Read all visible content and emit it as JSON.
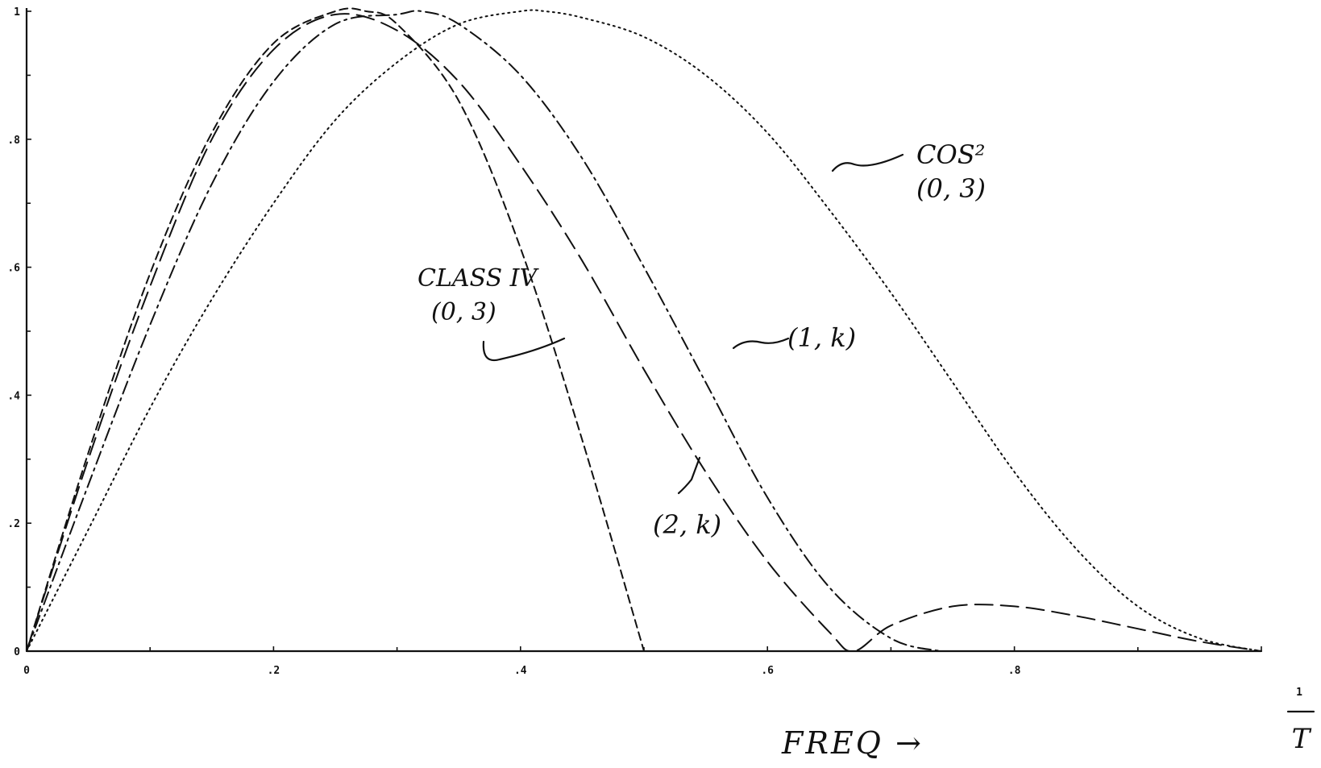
{
  "chart_data": {
    "type": "line",
    "xlabel": "FREQ →",
    "xlim": [
      0,
      1
    ],
    "ylim": [
      0,
      1
    ],
    "x_ticks": [
      {
        "value": 0,
        "label": "0"
      },
      {
        "value": 0.2,
        "label": ".2"
      },
      {
        "value": 0.4,
        "label": ".4"
      },
      {
        "value": 0.6,
        "label": ".6"
      },
      {
        "value": 0.8,
        "label": ".8"
      }
    ],
    "x_end_label": {
      "value": 1,
      "numerator": "1",
      "denominator": "T"
    },
    "y_ticks": [
      {
        "value": 0,
        "label": "0"
      },
      {
        "value": 0.2,
        "label": ".2"
      },
      {
        "value": 0.4,
        "label": ".4"
      },
      {
        "value": 0.6,
        "label": ".6"
      },
      {
        "value": 0.8,
        "label": ".8"
      },
      {
        "value": 1,
        "label": "1"
      }
    ],
    "grid": false,
    "series": [
      {
        "name": "CLASS IV (0,3)",
        "label_lines": [
          "CLASS IV",
          "(0, 3)"
        ],
        "style": "short-dash",
        "x": [
          0,
          0.05,
          0.1,
          0.15,
          0.2,
          0.25,
          0.275,
          0.3,
          0.35,
          0.4,
          0.45,
          0.5
        ],
        "y": [
          0,
          0.31,
          0.59,
          0.81,
          0.95,
          1.0,
          1.0,
          0.98,
          0.86,
          0.63,
          0.33,
          0
        ]
      },
      {
        "name": "(2,k)",
        "label_lines": [
          "(2, k)"
        ],
        "style": "long-dash",
        "x": [
          0,
          0.05,
          0.1,
          0.15,
          0.2,
          0.25,
          0.3,
          0.35,
          0.4,
          0.45,
          0.5,
          0.55,
          0.6,
          0.65,
          0.67,
          0.7,
          0.75,
          0.8,
          0.85,
          0.9,
          0.95,
          1.0
        ],
        "y": [
          0,
          0.3,
          0.57,
          0.8,
          0.94,
          0.995,
          0.97,
          0.89,
          0.76,
          0.61,
          0.44,
          0.28,
          0.14,
          0.03,
          0,
          0.04,
          0.07,
          0.07,
          0.055,
          0.035,
          0.015,
          0
        ]
      },
      {
        "name": "(1,k)",
        "label_lines": [
          "(1, k)"
        ],
        "style": "dash-dot",
        "x": [
          0,
          0.05,
          0.1,
          0.15,
          0.2,
          0.25,
          0.3,
          0.32,
          0.35,
          0.4,
          0.45,
          0.5,
          0.55,
          0.6,
          0.65,
          0.7,
          0.74
        ],
        "y": [
          0,
          0.26,
          0.51,
          0.73,
          0.89,
          0.98,
          0.995,
          1.0,
          0.98,
          0.9,
          0.77,
          0.6,
          0.42,
          0.24,
          0.1,
          0.02,
          0
        ]
      },
      {
        "name": "COS² (0,3)",
        "label_lines": [
          "COS²",
          "(0, 3)"
        ],
        "style": "dotted",
        "x": [
          0,
          0.05,
          0.1,
          0.15,
          0.2,
          0.25,
          0.3,
          0.35,
          0.4,
          0.42,
          0.45,
          0.5,
          0.55,
          0.6,
          0.65,
          0.7,
          0.75,
          0.8,
          0.85,
          0.9,
          0.95,
          1.0
        ],
        "y": [
          0,
          0.19,
          0.38,
          0.55,
          0.7,
          0.83,
          0.92,
          0.98,
          1.0,
          1.0,
          0.99,
          0.96,
          0.9,
          0.81,
          0.69,
          0.56,
          0.42,
          0.28,
          0.16,
          0.07,
          0.02,
          0
        ]
      }
    ]
  }
}
